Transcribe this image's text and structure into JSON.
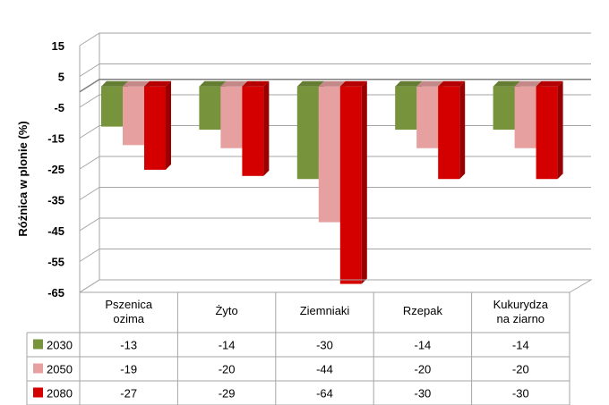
{
  "chart_data": {
    "type": "bar",
    "ylabel": "Różnica w plonie (%)",
    "ylim": [
      -65,
      15
    ],
    "yticks": [
      15,
      5,
      -5,
      -15,
      -25,
      -35,
      -45,
      -55,
      -65
    ],
    "grid": true,
    "legend": "data-table-left",
    "categories": [
      "Pszenica ozima",
      "Żyto",
      "Ziemniaki",
      "Rzepak",
      "Kukurydza na ziarno"
    ],
    "category_lines": [
      [
        "Pszenica",
        "ozima"
      ],
      [
        "Żyto"
      ],
      [
        "Ziemniaki"
      ],
      [
        "Rzepak"
      ],
      [
        "Kukurydza",
        "na ziarno"
      ]
    ],
    "series": [
      {
        "name": "2030",
        "color": "#77933c",
        "values": [
          -13,
          -14,
          -30,
          -14,
          -14
        ]
      },
      {
        "name": "2050",
        "color": "#e6a0a0",
        "values": [
          -19,
          -20,
          -44,
          -20,
          -20
        ]
      },
      {
        "name": "2080",
        "color": "#d40000",
        "values": [
          -27,
          -29,
          -64,
          -30,
          -30
        ]
      }
    ]
  }
}
